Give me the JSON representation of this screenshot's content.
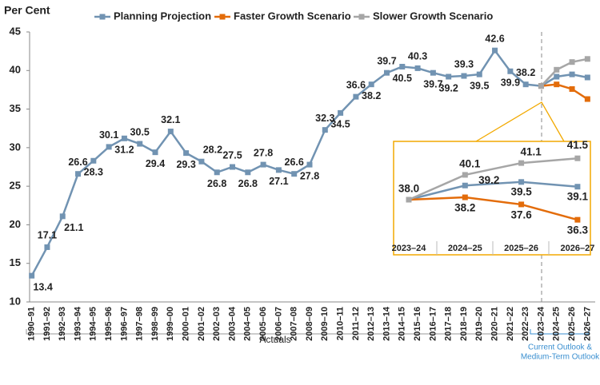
{
  "chart_data": {
    "type": "line",
    "y_axis_label": "Per Cent",
    "categories": [
      "1990–91",
      "1991–92",
      "1992–93",
      "1993–94",
      "1994–95",
      "1995–96",
      "1996–97",
      "1997–98",
      "1998–99",
      "1999–00",
      "2000–01",
      "2001–02",
      "2002–03",
      "2003–04",
      "2004–05",
      "2005–06",
      "2006–07",
      "2007–08",
      "2008–09",
      "2009–10",
      "2010–11",
      "2011–12",
      "2012–13",
      "2013–14",
      "2014–15",
      "2015–16",
      "2016–17",
      "2017–18",
      "2018–19",
      "2019–20",
      "2020–21",
      "2021–22",
      "2022–23",
      "2023–24",
      "2024–25",
      "2025–26",
      "2026–27"
    ],
    "series": [
      {
        "name": "Planning Projection",
        "color": "#7193b2",
        "values": [
          13.4,
          17.1,
          21.1,
          26.6,
          28.3,
          30.1,
          31.2,
          30.5,
          29.4,
          32.1,
          29.3,
          28.2,
          26.8,
          27.5,
          26.8,
          27.8,
          27.1,
          26.6,
          27.8,
          32.3,
          34.5,
          36.6,
          38.2,
          39.7,
          40.5,
          40.3,
          39.7,
          39.2,
          39.3,
          39.5,
          42.6,
          39.9,
          38.2,
          38.0,
          39.2,
          39.5,
          39.1
        ],
        "value_labels": [
          "13.4",
          "17.1",
          "21.1",
          "26.6",
          "28.3",
          "30.1",
          "31.2",
          "30.5",
          "29.4",
          "32.1",
          "29.3",
          "28.2",
          "26.8",
          "27.5",
          "26.8",
          "27.8",
          "27.1",
          "26.6",
          "27.8",
          "32.3",
          "34.5",
          "36.6",
          "38.2",
          "39.7",
          "40.5",
          "40.3",
          "39.7",
          "39.2",
          "39.3",
          "39.5",
          "42.6",
          "39.9",
          "38.2",
          "38.0",
          "39.2",
          "39.5",
          "39.1"
        ]
      },
      {
        "name": "Faster Growth Scenario",
        "color": "#e36c0a",
        "values": [
          null,
          null,
          null,
          null,
          null,
          null,
          null,
          null,
          null,
          null,
          null,
          null,
          null,
          null,
          null,
          null,
          null,
          null,
          null,
          null,
          null,
          null,
          null,
          null,
          null,
          null,
          null,
          null,
          null,
          null,
          null,
          null,
          null,
          38.0,
          38.2,
          37.6,
          36.3
        ],
        "value_labels": [
          null,
          null,
          null,
          null,
          null,
          null,
          null,
          null,
          null,
          null,
          null,
          null,
          null,
          null,
          null,
          null,
          null,
          null,
          null,
          null,
          null,
          null,
          null,
          null,
          null,
          null,
          null,
          null,
          null,
          null,
          null,
          null,
          null,
          null,
          "38.2",
          "37.6",
          "36.3"
        ]
      },
      {
        "name": "Slower Growth Scenario",
        "color": "#a6a6a6",
        "values": [
          null,
          null,
          null,
          null,
          null,
          null,
          null,
          null,
          null,
          null,
          null,
          null,
          null,
          null,
          null,
          null,
          null,
          null,
          null,
          null,
          null,
          null,
          null,
          null,
          null,
          null,
          null,
          null,
          null,
          null,
          null,
          null,
          null,
          38.0,
          40.1,
          41.1,
          41.5
        ],
        "value_labels": [
          null,
          null,
          null,
          null,
          null,
          null,
          null,
          null,
          null,
          null,
          null,
          null,
          null,
          null,
          null,
          null,
          null,
          null,
          null,
          null,
          null,
          null,
          null,
          null,
          null,
          null,
          null,
          null,
          null,
          null,
          null,
          null,
          null,
          null,
          "40.1",
          "41.1",
          "41.5"
        ]
      }
    ],
    "ylim": [
      10,
      45
    ],
    "yticks": [
      10,
      15,
      20,
      25,
      30,
      35,
      40,
      45
    ],
    "annotations": {
      "actuals": "Actuals",
      "outlook": [
        "Current Outlook &",
        "Medium-Term Outlook"
      ]
    },
    "legend": "top"
  }
}
